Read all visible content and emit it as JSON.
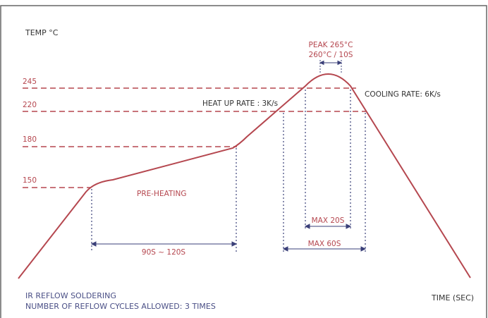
{
  "diagram": {
    "y_axis_label": "TEMP °C",
    "x_axis_label": "TIME (SEC)",
    "temp_levels": [
      "150",
      "180",
      "220",
      "245"
    ],
    "zones": {
      "preheating": "PRE-HEATING",
      "heat_up_rate": "HEAT UP RATE : 3K/s",
      "cooling_rate": "COOLING RATE: 6K/s",
      "peak_line1": "PEAK 265°C",
      "peak_line2": "260°C / 10S"
    },
    "durations": {
      "preheat_time": "90S ~ 120S",
      "max_20s": "MAX 20S",
      "max_60s": "MAX 60S"
    },
    "footer": {
      "line1": "IR REFLOW SOLDERING",
      "line2": "NUMBER OF REFLOW CYCLES ALLOWED: 3 TIMES"
    },
    "colors": {
      "curve": "#b5474f",
      "frame": "#666666",
      "guides": "#3a3f78",
      "footer_text": "#4a4f86"
    }
  }
}
